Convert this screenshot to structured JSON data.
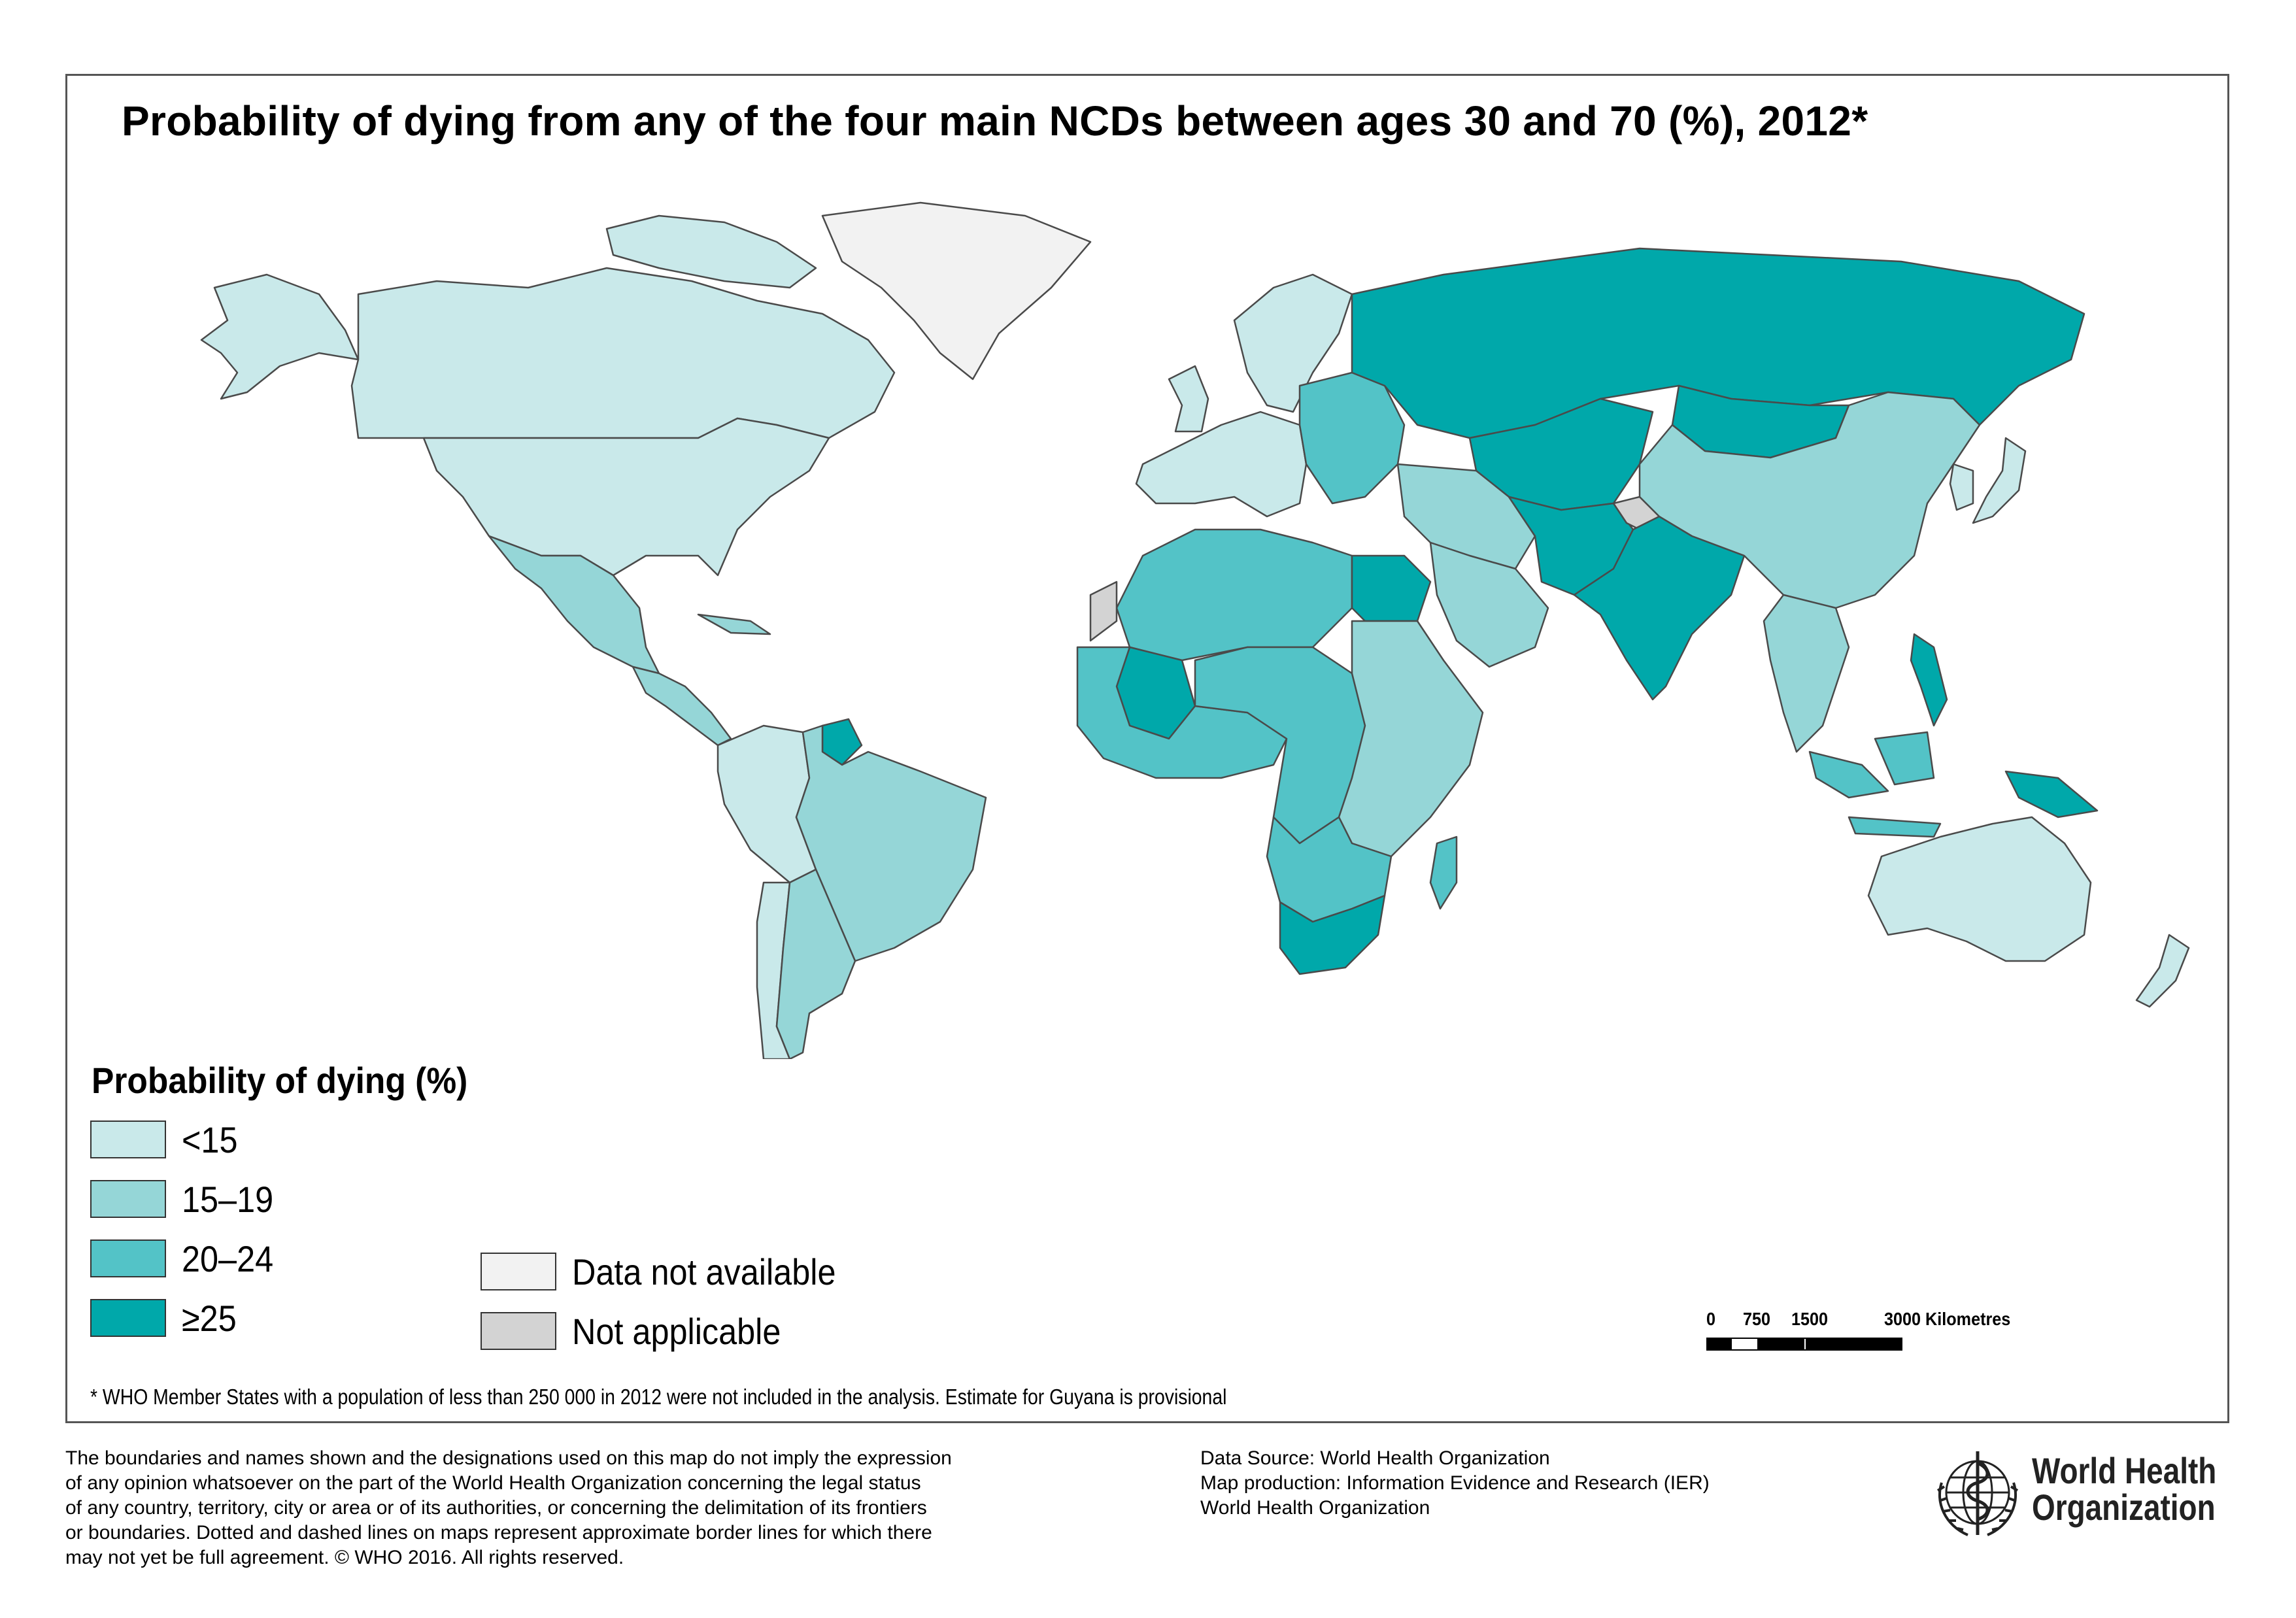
{
  "title": "Probability of dying from any of the four main NCDs between ages 30 and 70 (%), 2012*",
  "colors": {
    "lt15": "#c9e9ea",
    "15_19": "#95d6d7",
    "20_24": "#53c3c7",
    "ge25": "#00a8aa",
    "data_not_available": "#f2f2f2",
    "not_applicable": "#d3d3d3",
    "border": "#4a4a4a"
  },
  "legend": {
    "title": "Probability of dying (%)",
    "items": [
      {
        "key": "lt15",
        "label": "<15"
      },
      {
        "key": "15_19",
        "label": "15–19"
      },
      {
        "key": "20_24",
        "label": "20–24"
      },
      {
        "key": "ge25",
        "label": "≥25"
      }
    ],
    "special": [
      {
        "key": "data_not_available",
        "label": "Data not available"
      },
      {
        "key": "not_applicable",
        "label": "Not applicable"
      }
    ]
  },
  "regions": [
    {
      "name": "Canada",
      "class": "lt15"
    },
    {
      "name": "United States of America",
      "class": "lt15"
    },
    {
      "name": "Alaska",
      "class": "lt15"
    },
    {
      "name": "Greenland",
      "class": "data_not_available"
    },
    {
      "name": "Mexico",
      "class": "15_19"
    },
    {
      "name": "Central America",
      "class": "15_19"
    },
    {
      "name": "Guyana",
      "class": "ge25"
    },
    {
      "name": "Brazil",
      "class": "15_19"
    },
    {
      "name": "Andean region",
      "class": "lt15"
    },
    {
      "name": "Argentina",
      "class": "15_19"
    },
    {
      "name": "Chile",
      "class": "lt15"
    },
    {
      "name": "Western Europe",
      "class": "lt15"
    },
    {
      "name": "Scandinavia",
      "class": "lt15"
    },
    {
      "name": "Eastern Europe",
      "class": "20_24"
    },
    {
      "name": "Russian Federation",
      "class": "ge25"
    },
    {
      "name": "Central Asia",
      "class": "ge25"
    },
    {
      "name": "Mongolia",
      "class": "ge25"
    },
    {
      "name": "China",
      "class": "15_19"
    },
    {
      "name": "India",
      "class": "ge25"
    },
    {
      "name": "Afghanistan / Pakistan",
      "class": "ge25"
    },
    {
      "name": "Middle East",
      "class": "15_19"
    },
    {
      "name": "Saudi Arabia",
      "class": "15_19"
    },
    {
      "name": "North Africa",
      "class": "20_24"
    },
    {
      "name": "Egypt",
      "class": "ge25"
    },
    {
      "name": "West Africa",
      "class": "20_24"
    },
    {
      "name": "Mali",
      "class": "ge25"
    },
    {
      "name": "Western Sahara",
      "class": "not_applicable"
    },
    {
      "name": "Central Africa",
      "class": "20_24"
    },
    {
      "name": "Eastern Africa",
      "class": "15_19"
    },
    {
      "name": "Southern Africa",
      "class": "20_24"
    },
    {
      "name": "South Africa",
      "class": "ge25"
    },
    {
      "name": "Madagascar",
      "class": "20_24"
    },
    {
      "name": "Southeast Asia",
      "class": "15_19"
    },
    {
      "name": "Indonesia",
      "class": "20_24"
    },
    {
      "name": "Philippines",
      "class": "ge25"
    },
    {
      "name": "Papua New Guinea",
      "class": "ge25"
    },
    {
      "name": "Japan",
      "class": "lt15"
    },
    {
      "name": "Republic of Korea",
      "class": "lt15"
    },
    {
      "name": "Australia",
      "class": "lt15"
    },
    {
      "name": "New Zealand",
      "class": "lt15"
    },
    {
      "name": "Kashmir",
      "class": "not_applicable"
    }
  ],
  "footnote": "* WHO Member States with a population of less than 250 000 in 2012 were not included in the analysis. Estimate for Guyana is provisional",
  "scale": {
    "labels": [
      "0",
      "750",
      "1500",
      "3000 Kilometres"
    ]
  },
  "disclaimer": [
    "The boundaries and names shown and the designations used on this map do not imply the expression",
    "of any opinion whatsoever on the part of the World Health Organization concerning the legal status",
    "of any country, territory, city or area or of its authorities, or concerning the delimitation of its frontiers",
    "or boundaries. Dotted and dashed lines on maps represent approximate border lines for which there",
    "may not yet be full agreement. © WHO 2016. All rights reserved."
  ],
  "source": [
    "Data Source: World Health Organization",
    "Map production: Information Evidence and Research (IER)",
    "World Health Organization"
  ],
  "logo": {
    "line1": "World Health",
    "line2": "Organization"
  }
}
